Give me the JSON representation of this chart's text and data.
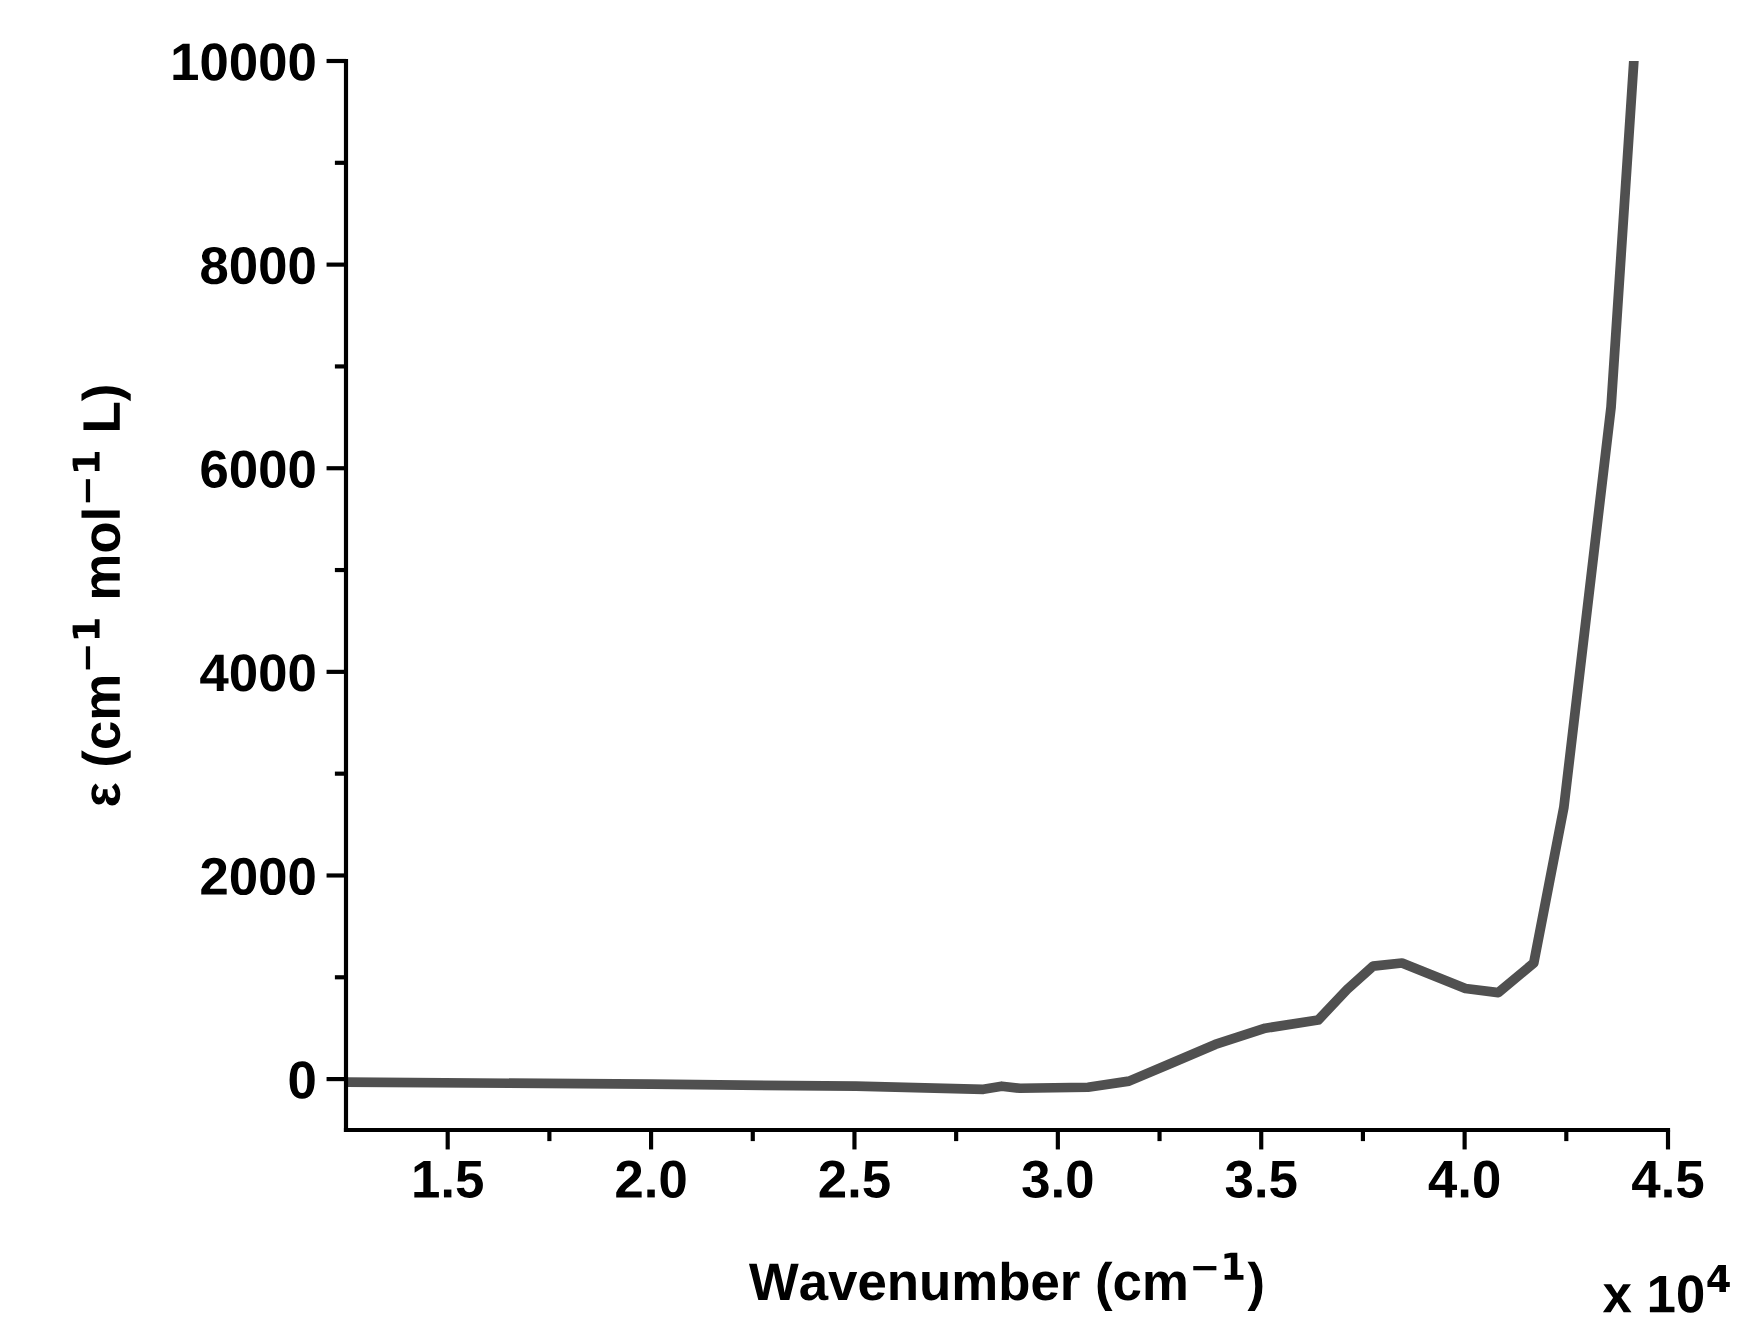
{
  "chart_data": {
    "type": "line",
    "xlabel": "Wavenumber (cm$^{−1}$)",
    "ylabel": "ε (cm$^{−1}$ mol$^{−1}$ L)",
    "annotations": [
      "x 10$^{4}$"
    ],
    "series": [
      {
        "color": "#505050",
        "x": [
          1.252,
          2.001,
          2.504,
          2.817,
          2.862,
          2.907,
          3.074,
          3.175,
          3.276,
          3.387,
          3.51,
          3.64,
          3.711,
          3.775,
          3.846,
          4.002,
          4.083,
          4.17,
          4.244,
          4.36,
          4.416
        ],
        "values": [
          -30,
          -50,
          -70,
          -100,
          -70,
          -90,
          -80,
          -20,
          150,
          340,
          500,
          580,
          880,
          1110,
          1140,
          890,
          850,
          1140,
          2670,
          6600,
          10000
        ]
      }
    ],
    "xlim": [
      1.25,
      4.5
    ],
    "ylim": [
      -500,
      10000
    ],
    "xticks": [
      1.5,
      {
        "value": 1.75,
        "label": null
      },
      {
        "value": 2,
        "label": "2.0"
      },
      {
        "value": 2.25,
        "label": null
      },
      2.5,
      {
        "value": 2.75,
        "label": null
      },
      {
        "value": 3,
        "label": "3.0"
      },
      {
        "value": 3.25,
        "label": null
      },
      3.5,
      {
        "value": 3.75,
        "label": null
      },
      {
        "value": 4,
        "label": "4.0"
      },
      {
        "value": 4.25,
        "label": null
      },
      4.5
    ],
    "yticks": [
      0,
      {
        "value": 1000,
        "label": null
      },
      2000,
      {
        "value": 3000,
        "label": null
      },
      4000,
      {
        "value": 5000,
        "label": null
      },
      6000,
      {
        "value": 7000,
        "label": null
      },
      8000,
      {
        "value": 9000,
        "label": null
      },
      10000
    ],
    "grid": false,
    "marker": "none",
    "line_style": "solid"
  }
}
